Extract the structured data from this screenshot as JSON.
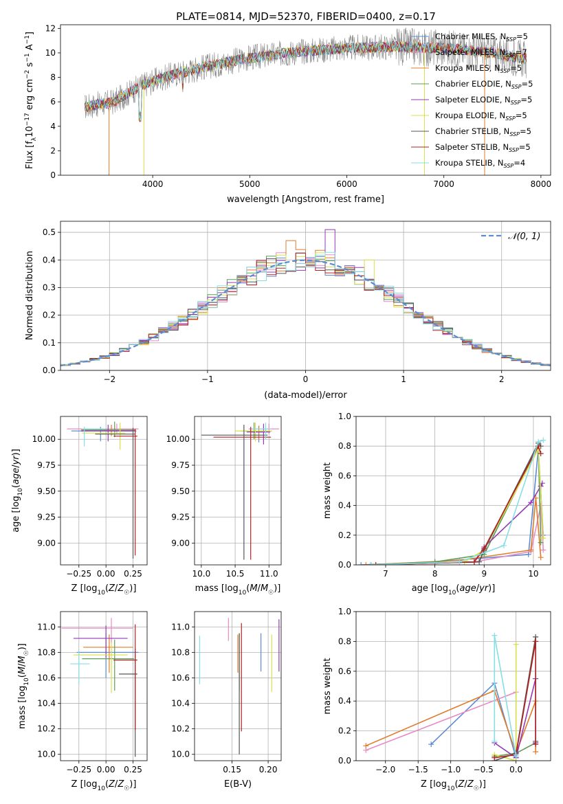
{
  "figure_title": "PLATE=0814, MJD=52370, FIBERID=0400, z=0.17",
  "colors": {
    "Chabrier MILES": "#5b8bd1",
    "Salpeter MILES": "#e88bc4",
    "Kroupa MILES": "#e07b2a",
    "Chabrier ELODIE": "#5e9b58",
    "Salpeter ELODIE": "#9339b3",
    "Kroupa ELODIE": "#d6e04a",
    "Chabrier STELIB": "#555555",
    "Salpeter STELIB": "#b22222",
    "Kroupa STELIB": "#86dde6",
    "normal": "#5b8bd1",
    "data": "#888888"
  },
  "chart_data": [
    {
      "id": "spectrum",
      "type": "line",
      "title": "PLATE=0814, MJD=52370, FIBERID=0400, z=0.17",
      "xlabel": "wavelength [Angstrom, rest frame]",
      "ylabel": "Flux [f_λ 10^-17 erg cm^-2 s^-1 A^-1]",
      "xlim": [
        3050,
        8100
      ],
      "ylim": [
        0,
        12.3
      ],
      "xticks": [
        4000,
        5000,
        6000,
        7000,
        8000
      ],
      "yticks": [
        0,
        2,
        4,
        6,
        8,
        10,
        12
      ],
      "legend_position": "top-right",
      "grid": false,
      "continuum": [
        [
          3300,
          5.6
        ],
        [
          3600,
          6.0
        ],
        [
          3900,
          7.4
        ],
        [
          4200,
          8.2
        ],
        [
          4500,
          8.8
        ],
        [
          5000,
          9.6
        ],
        [
          5500,
          10.1
        ],
        [
          6000,
          10.4
        ],
        [
          6500,
          10.5
        ],
        [
          7000,
          10.4
        ],
        [
          7500,
          10.0
        ],
        [
          7850,
          9.5
        ]
      ],
      "legend": [
        {
          "label": "Chabrier MILES, N_SSP=5",
          "model": "Chabrier MILES"
        },
        {
          "label": "Salpeter MILES, N_SSP=7",
          "model": "Salpeter MILES"
        },
        {
          "label": "Kroupa MILES, N_SSP=5",
          "model": "Kroupa MILES"
        },
        {
          "label": "Chabrier ELODIE, N_SSP=5",
          "model": "Chabrier ELODIE"
        },
        {
          "label": "Salpeter ELODIE, N_SSP=5",
          "model": "Salpeter ELODIE"
        },
        {
          "label": "Kroupa ELODIE, N_SSP=5",
          "model": "Kroupa ELODIE"
        },
        {
          "label": "Chabrier STELIB, N_SSP=5",
          "model": "Chabrier STELIB"
        },
        {
          "label": "Salpeter STELIB, N_SSP=5",
          "model": "Salpeter STELIB"
        },
        {
          "label": "Kroupa STELIB, N_SSP=4",
          "model": "Kroupa STELIB"
        }
      ]
    },
    {
      "id": "residual_hist",
      "type": "histogram",
      "xlabel": "(data-model)/error",
      "ylabel": "Normed distribution",
      "xlim": [
        -2.5,
        2.5
      ],
      "ylim": [
        0,
        0.54
      ],
      "xticks": [
        -2,
        -1,
        0,
        1,
        2
      ],
      "yticks": [
        0.0,
        0.1,
        0.2,
        0.3,
        0.4,
        0.5
      ],
      "grid": true,
      "legend_position": "top-right",
      "normal_label": "𝒩(0, 1)",
      "bin_width": 0.1,
      "peak_overrides": [
        {
          "model": "Salpeter ELODIE",
          "x": 0.25,
          "y": 0.51
        },
        {
          "model": "Kroupa MILES",
          "x": -0.15,
          "y": 0.47
        },
        {
          "model": "Kroupa ELODIE",
          "x": 0.65,
          "y": 0.4
        }
      ]
    },
    {
      "id": "age_vs_Z",
      "type": "errorbar",
      "xlabel": "Z [log10(Z/Z☉)]",
      "ylabel": "age  [log10(age/yr)]",
      "xlim": [
        -0.42,
        0.38
      ],
      "ylim": [
        8.79,
        10.22
      ],
      "xticks": [
        -0.25,
        0.0,
        0.25
      ],
      "yticks": [
        9.0,
        9.25,
        9.5,
        9.75,
        10.0
      ],
      "grid": true,
      "points": [
        {
          "model": "Chabrier MILES",
          "x": -0.05,
          "y": 10.08,
          "xerr": [
            0.27,
            0.3
          ],
          "yerr": [
            0.1,
            0.04
          ]
        },
        {
          "model": "Salpeter MILES",
          "x": 0.1,
          "y": 10.1,
          "xerr": [
            0.46,
            0.2
          ],
          "yerr": [
            0.05,
            0.05
          ]
        },
        {
          "model": "Kroupa MILES",
          "x": 0.05,
          "y": 10.09,
          "xerr": [
            0.28,
            0.22
          ],
          "yerr": [
            0.06,
            0.05
          ]
        },
        {
          "model": "Chabrier ELODIE",
          "x": 0.08,
          "y": 10.09,
          "xerr": [
            0.3,
            0.18
          ],
          "yerr": [
            0.07,
            0.08
          ]
        },
        {
          "model": "Salpeter ELODIE",
          "x": 0.02,
          "y": 10.08,
          "xerr": [
            0.25,
            0.26
          ],
          "yerr": [
            0.1,
            0.06
          ]
        },
        {
          "model": "Kroupa ELODIE",
          "x": 0.13,
          "y": 10.06,
          "xerr": [
            0.35,
            0.05
          ],
          "yerr": [
            0.16,
            0.1
          ]
        },
        {
          "model": "Chabrier STELIB",
          "x": 0.25,
          "y": 10.05,
          "xerr": [
            0.35,
            0.02
          ],
          "yerr": [
            1.2,
            0.06
          ]
        },
        {
          "model": "Salpeter STELIB",
          "x": 0.27,
          "y": 10.03,
          "xerr": [
            0.2,
            0.02
          ],
          "yerr": [
            1.15,
            0.07
          ]
        },
        {
          "model": "Kroupa STELIB",
          "x": -0.2,
          "y": 10.1,
          "xerr": [
            0.02,
            0.2
          ],
          "yerr": [
            0.17,
            0.02
          ]
        }
      ]
    },
    {
      "id": "age_vs_mass",
      "type": "errorbar",
      "xlabel": "mass [log10(M/M☉)]",
      "ylabel": "",
      "xlim": [
        9.9,
        11.18
      ],
      "ylim": [
        8.79,
        10.22
      ],
      "xticks": [
        10.0,
        10.5,
        11.0
      ],
      "yticks": [
        9.0,
        9.25,
        9.5,
        9.75,
        10.0
      ],
      "grid": true,
      "points": [
        {
          "model": "Chabrier MILES",
          "x": 10.85,
          "y": 10.07,
          "xerr": [
            0.1,
            0.12
          ],
          "yerr": [
            0.1,
            0.06
          ]
        },
        {
          "model": "Salpeter MILES",
          "x": 11.0,
          "y": 10.1,
          "xerr": [
            0.3,
            0.15
          ],
          "yerr": [
            0.05,
            0.05
          ]
        },
        {
          "model": "Kroupa MILES",
          "x": 10.85,
          "y": 10.08,
          "xerr": [
            0.2,
            0.18
          ],
          "yerr": [
            0.08,
            0.05
          ]
        },
        {
          "model": "Chabrier ELODIE",
          "x": 10.78,
          "y": 10.08,
          "xerr": [
            0.2,
            0.2
          ],
          "yerr": [
            0.08,
            0.08
          ]
        },
        {
          "model": "Salpeter ELODIE",
          "x": 10.92,
          "y": 10.07,
          "xerr": [
            0.25,
            0.1
          ],
          "yerr": [
            0.12,
            0.08
          ]
        },
        {
          "model": "Kroupa ELODIE",
          "x": 10.8,
          "y": 10.08,
          "xerr": [
            0.3,
            0.25
          ],
          "yerr": [
            0.1,
            0.08
          ]
        },
        {
          "model": "Chabrier STELIB",
          "x": 10.63,
          "y": 10.04,
          "xerr": [
            0.63,
            0.35
          ],
          "yerr": [
            1.2,
            0.1
          ]
        },
        {
          "model": "Salpeter STELIB",
          "x": 10.73,
          "y": 10.02,
          "xerr": [
            0.55,
            0.3
          ],
          "yerr": [
            1.18,
            0.1
          ]
        },
        {
          "model": "Kroupa STELIB",
          "x": 10.95,
          "y": 10.1,
          "xerr": [
            0.2,
            0.08
          ],
          "yerr": [
            0.1,
            0.06
          ]
        }
      ]
    },
    {
      "id": "weight_vs_age",
      "type": "line",
      "xlabel": "age  [log10(age/yr)]",
      "ylabel": "mass weight",
      "xlim": [
        6.4,
        10.35
      ],
      "ylim": [
        0,
        1.0
      ],
      "xticks": [
        7,
        8,
        9,
        10
      ],
      "yticks": [
        0.0,
        0.2,
        0.4,
        0.6,
        0.8,
        1.0
      ],
      "grid": true,
      "series": [
        {
          "model": "Chabrier MILES",
          "x": [
            6.5,
            8.0,
            9.9,
            10.1,
            10.2
          ],
          "y": [
            0.0,
            0.02,
            0.07,
            0.78,
            0.2
          ]
        },
        {
          "model": "Salpeter MILES",
          "x": [
            6.8,
            8.8,
            9.95,
            10.15,
            10.2
          ],
          "y": [
            0.0,
            0.02,
            0.09,
            0.4,
            0.1
          ]
        },
        {
          "model": "Kroupa MILES",
          "x": [
            6.6,
            8.5,
            9.95,
            10.05,
            10.15
          ],
          "y": [
            0.0,
            0.03,
            0.1,
            0.45,
            0.05
          ]
        },
        {
          "model": "Chabrier ELODIE",
          "x": [
            6.7,
            8.0,
            9.0,
            10.1,
            10.15
          ],
          "y": [
            0.0,
            0.02,
            0.07,
            0.8,
            0.15
          ]
        },
        {
          "model": "Salpeter ELODIE",
          "x": [
            6.7,
            8.8,
            9.0,
            9.95,
            10.15,
            10.18
          ],
          "y": [
            0.0,
            0.02,
            0.12,
            0.42,
            0.53,
            0.55
          ]
        },
        {
          "model": "Kroupa ELODIE",
          "x": [
            6.8,
            8.6,
            9.0,
            10.1,
            10.2
          ],
          "y": [
            0.0,
            0.02,
            0.1,
            0.78,
            0.18
          ]
        },
        {
          "model": "Chabrier STELIB",
          "x": [
            6.7,
            8.9,
            9.0,
            10.1,
            10.15
          ],
          "y": [
            0.0,
            0.02,
            0.1,
            0.82,
            0.8
          ]
        },
        {
          "model": "Salpeter STELIB",
          "x": [
            6.8,
            8.8,
            9.0,
            10.1,
            10.15
          ],
          "y": [
            0.0,
            0.02,
            0.11,
            0.8,
            0.75
          ]
        },
        {
          "model": "Kroupa STELIB",
          "x": [
            6.7,
            8.5,
            9.4,
            10.1,
            10.2
          ],
          "y": [
            0.0,
            0.02,
            0.13,
            0.83,
            0.84
          ]
        }
      ]
    },
    {
      "id": "mass_vs_Z",
      "type": "errorbar",
      "xlabel": "Z [log10(Z/Z☉)]",
      "ylabel": "mass [log10(M/M☉)]",
      "xlim": [
        -0.42,
        0.38
      ],
      "ylim": [
        9.95,
        11.12
      ],
      "xticks": [
        -0.25,
        0.0,
        0.25
      ],
      "yticks": [
        10.0,
        10.2,
        10.4,
        10.6,
        10.8,
        11.0
      ],
      "grid": true,
      "points": [
        {
          "model": "Chabrier MILES",
          "x": 0.0,
          "y": 10.8,
          "xerr": [
            0.27,
            0.3
          ],
          "yerr": [
            0.2,
            0.15
          ]
        },
        {
          "model": "Salpeter MILES",
          "x": 0.05,
          "y": 10.99,
          "xerr": [
            0.46,
            0.2
          ],
          "yerr": [
            0.12,
            0.08
          ]
        },
        {
          "model": "Kroupa MILES",
          "x": 0.03,
          "y": 10.84,
          "xerr": [
            0.24,
            0.22
          ],
          "yerr": [
            0.2,
            0.1
          ]
        },
        {
          "model": "Chabrier ELODIE",
          "x": 0.08,
          "y": 10.75,
          "xerr": [
            0.3,
            0.18
          ],
          "yerr": [
            0.25,
            0.15
          ]
        },
        {
          "model": "Salpeter ELODIE",
          "x": 0.0,
          "y": 10.91,
          "xerr": [
            0.3,
            0.2
          ],
          "yerr": [
            0.15,
            0.1
          ]
        },
        {
          "model": "Kroupa ELODIE",
          "x": 0.05,
          "y": 10.78,
          "xerr": [
            0.35,
            0.15
          ],
          "yerr": [
            0.3,
            0.1
          ]
        },
        {
          "model": "Chabrier STELIB",
          "x": 0.27,
          "y": 10.63,
          "xerr": [
            0.15,
            0.02
          ],
          "yerr": [
            0.65,
            0.2
          ]
        },
        {
          "model": "Salpeter STELIB",
          "x": 0.27,
          "y": 10.74,
          "xerr": [
            0.2,
            0.02
          ],
          "yerr": [
            0.55,
            0.28
          ]
        },
        {
          "model": "Kroupa STELIB",
          "x": -0.25,
          "y": 10.71,
          "xerr": [
            0.08,
            0.1
          ],
          "yerr": [
            0.16,
            0.1
          ]
        }
      ]
    },
    {
      "id": "mass_vs_EBV",
      "type": "errorbar",
      "xlabel": "E(B-V)",
      "ylabel": "",
      "xlim": [
        0.098,
        0.218
      ],
      "ylim": [
        9.95,
        11.12
      ],
      "xticks": [
        0.15,
        0.2
      ],
      "yticks": [
        10.0,
        10.2,
        10.4,
        10.6,
        10.8,
        11.0
      ],
      "grid": true,
      "points": [
        {
          "model": "Chabrier MILES",
          "x": 0.19,
          "y": 10.8,
          "xerr": [
            0,
            0
          ],
          "yerr": [
            0.15,
            0.15
          ]
        },
        {
          "model": "Salpeter MILES",
          "x": 0.145,
          "y": 10.99,
          "xerr": [
            0,
            0
          ],
          "yerr": [
            0.1,
            0.08
          ]
        },
        {
          "model": "Kroupa MILES",
          "x": 0.158,
          "y": 10.84,
          "xerr": [
            0,
            0
          ],
          "yerr": [
            0.2,
            0.1
          ]
        },
        {
          "model": "Chabrier ELODIE",
          "x": 0.16,
          "y": 10.75,
          "xerr": [
            0,
            0
          ],
          "yerr": [
            0.25,
            0.2
          ]
        },
        {
          "model": "Salpeter ELODIE",
          "x": 0.215,
          "y": 10.9,
          "xerr": [
            0,
            0
          ],
          "yerr": [
            0.25,
            0.16
          ]
        },
        {
          "model": "Kroupa ELODIE",
          "x": 0.205,
          "y": 10.74,
          "xerr": [
            0,
            0
          ],
          "yerr": [
            0.25,
            0.2
          ]
        },
        {
          "model": "Chabrier STELIB",
          "x": 0.16,
          "y": 10.45,
          "xerr": [
            0,
            0
          ],
          "yerr": [
            0.45,
            0.5
          ]
        },
        {
          "model": "Salpeter STELIB",
          "x": 0.163,
          "y": 10.6,
          "xerr": [
            0,
            0
          ],
          "yerr": [
            0.42,
            0.43
          ]
        },
        {
          "model": "Kroupa STELIB",
          "x": 0.105,
          "y": 10.73,
          "xerr": [
            0,
            0
          ],
          "yerr": [
            0.18,
            0.2
          ]
        }
      ]
    },
    {
      "id": "weight_vs_Z",
      "type": "line",
      "xlabel": "Z [log10(Z/Z☉)]",
      "ylabel": "mass weight",
      "xlim": [
        -2.45,
        0.53
      ],
      "ylim": [
        0,
        1.0
      ],
      "xticks": [
        -2.0,
        -1.5,
        -1.0,
        -0.5,
        0.0
      ],
      "yticks": [
        0.0,
        0.2,
        0.4,
        0.6,
        0.8,
        1.0
      ],
      "grid": true,
      "series": [
        {
          "model": "Chabrier MILES",
          "x": [
            -1.3,
            -0.33,
            0.0
          ],
          "y": [
            0.11,
            0.52,
            0.02
          ]
        },
        {
          "model": "Salpeter MILES",
          "x": [
            -2.3,
            0.0,
            0.0
          ],
          "y": [
            0.07,
            0.46,
            0.0
          ]
        },
        {
          "model": "Kroupa MILES",
          "x": [
            -2.3,
            -0.33,
            0.0,
            0.3,
            0.3
          ],
          "y": [
            0.1,
            0.47,
            0.05,
            0.4,
            0.06
          ]
        },
        {
          "model": "Chabrier ELODIE",
          "x": [
            -0.33,
            0.0,
            0.3
          ],
          "y": [
            0.03,
            0.05,
            0.12
          ]
        },
        {
          "model": "Salpeter ELODIE",
          "x": [
            -0.33,
            0.0,
            0.3,
            0.3
          ],
          "y": [
            0.12,
            0.02,
            0.55,
            0.12
          ]
        },
        {
          "model": "Kroupa ELODIE",
          "x": [
            -0.33,
            0.0,
            0.0
          ],
          "y": [
            0.04,
            0.0,
            0.78
          ]
        },
        {
          "model": "Chabrier STELIB",
          "x": [
            -0.33,
            0.0,
            0.3,
            0.3
          ],
          "y": [
            0.0,
            0.05,
            0.83,
            0.13
          ]
        },
        {
          "model": "Salpeter STELIB",
          "x": [
            -0.33,
            0.0,
            0.3,
            0.3
          ],
          "y": [
            0.02,
            0.04,
            0.8,
            0.11
          ]
        },
        {
          "model": "Kroupa STELIB",
          "x": [
            -0.33,
            -0.33,
            0.0,
            0.0
          ],
          "y": [
            0.13,
            0.84,
            0.03,
            0.04
          ]
        }
      ]
    }
  ]
}
